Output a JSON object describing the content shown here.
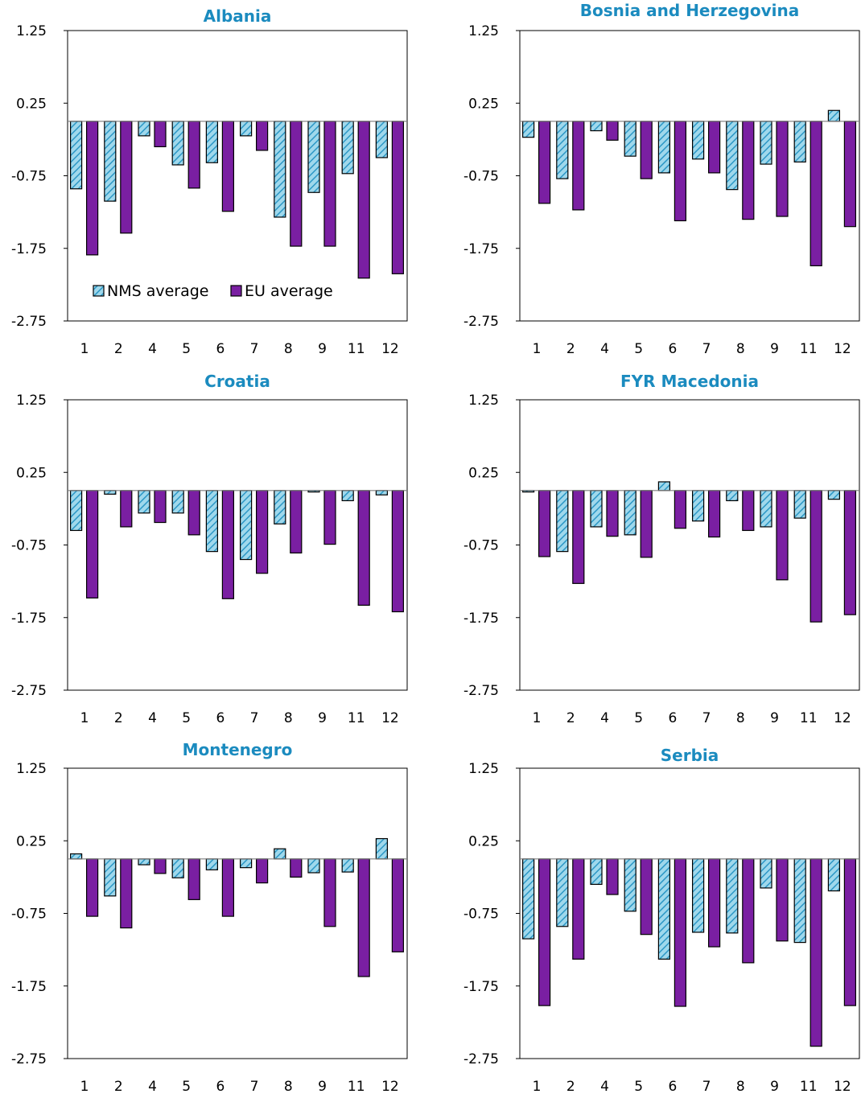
{
  "colors": {
    "nms_fill": "#9fd8ec",
    "nms_stripe": "#2c97c5",
    "eu_fill": "#7a1fa2",
    "title": "#1b8bbf",
    "axis": "#000000"
  },
  "legend": {
    "nms_label": "NMS average",
    "eu_label": "EU average"
  },
  "chart_data": [
    {
      "type": "bar",
      "title": "Albania",
      "categories": [
        "1",
        "2",
        "4",
        "5",
        "6",
        "7",
        "8",
        "9",
        "11",
        "12"
      ],
      "ylim": [
        -2.75,
        1.25
      ],
      "yticks": [
        "1.25",
        "0.25",
        "-0.75",
        "-1.75",
        "-2.75"
      ],
      "legend": "bottom-left",
      "series": [
        {
          "name": "NMS average",
          "values": [
            -0.93,
            -1.1,
            -0.2,
            -0.6,
            -0.57,
            -0.2,
            -1.32,
            -0.98,
            -0.72,
            -0.5
          ]
        },
        {
          "name": "EU average",
          "values": [
            -1.84,
            -1.54,
            -0.35,
            -0.92,
            -1.24,
            -0.4,
            -1.72,
            -1.72,
            -2.16,
            -2.1
          ]
        }
      ]
    },
    {
      "type": "bar",
      "title": "Bosnia and Herzegovina",
      "categories": [
        "1",
        "2",
        "4",
        "5",
        "6",
        "7",
        "8",
        "9",
        "11",
        "12"
      ],
      "ylim": [
        -2.75,
        1.25
      ],
      "yticks": [
        "1.25",
        "0.25",
        "-0.75",
        "-1.75",
        "-2.75"
      ],
      "series": [
        {
          "name": "NMS average",
          "values": [
            -0.22,
            -0.79,
            -0.13,
            -0.48,
            -0.71,
            -0.52,
            -0.94,
            -0.59,
            -0.56,
            0.15
          ]
        },
        {
          "name": "EU average",
          "values": [
            -1.13,
            -1.22,
            -0.26,
            -0.79,
            -1.37,
            -0.71,
            -1.35,
            -1.31,
            -1.99,
            -1.45
          ]
        }
      ]
    },
    {
      "type": "bar",
      "title": "Croatia",
      "categories": [
        "1",
        "2",
        "4",
        "5",
        "6",
        "7",
        "8",
        "9",
        "11",
        "12"
      ],
      "ylim": [
        -2.75,
        1.25
      ],
      "yticks": [
        "1.25",
        "0.25",
        "-0.75",
        "-1.75",
        "-2.75"
      ],
      "series": [
        {
          "name": "NMS average",
          "values": [
            -0.55,
            -0.05,
            -0.31,
            -0.31,
            -0.84,
            -0.95,
            -0.46,
            -0.02,
            -0.14,
            -0.06
          ]
        },
        {
          "name": "EU average",
          "values": [
            -1.48,
            -0.5,
            -0.44,
            -0.61,
            -1.49,
            -1.14,
            -0.86,
            -0.74,
            -1.58,
            -1.67
          ]
        }
      ]
    },
    {
      "type": "bar",
      "title": "FYR Macedonia",
      "categories": [
        "1",
        "2",
        "4",
        "5",
        "6",
        "7",
        "8",
        "9",
        "11",
        "12"
      ],
      "ylim": [
        -2.75,
        1.25
      ],
      "yticks": [
        "1.25",
        "0.25",
        "-0.75",
        "-1.75",
        "-2.75"
      ],
      "series": [
        {
          "name": "NMS average",
          "values": [
            -0.02,
            -0.84,
            -0.5,
            -0.61,
            0.12,
            -0.42,
            -0.14,
            -0.5,
            -0.38,
            -0.12
          ]
        },
        {
          "name": "EU average",
          "values": [
            -0.91,
            -1.28,
            -0.63,
            -0.92,
            -0.52,
            -0.64,
            -0.55,
            -1.23,
            -1.81,
            -1.71
          ]
        }
      ]
    },
    {
      "type": "bar",
      "title": "Montenegro",
      "categories": [
        "1",
        "2",
        "4",
        "5",
        "6",
        "7",
        "8",
        "9",
        "11",
        "12"
      ],
      "ylim": [
        -2.75,
        1.25
      ],
      "yticks": [
        "1.25",
        "0.25",
        "-0.75",
        "-1.75",
        "-2.75"
      ],
      "series": [
        {
          "name": "NMS average",
          "values": [
            0.07,
            -0.51,
            -0.08,
            -0.26,
            -0.15,
            -0.12,
            0.14,
            -0.19,
            -0.18,
            0.28
          ]
        },
        {
          "name": "EU average",
          "values": [
            -0.79,
            -0.95,
            -0.2,
            -0.56,
            -0.79,
            -0.33,
            -0.25,
            -0.93,
            -1.62,
            -1.28
          ]
        }
      ]
    },
    {
      "type": "bar",
      "title": "Serbia",
      "categories": [
        "1",
        "2",
        "4",
        "5",
        "6",
        "7",
        "8",
        "9",
        "11",
        "12"
      ],
      "ylim": [
        -2.75,
        1.25
      ],
      "yticks": [
        "1.25",
        "0.25",
        "-0.75",
        "-1.75",
        "-2.75"
      ],
      "series": [
        {
          "name": "NMS average",
          "values": [
            -1.1,
            -0.93,
            -0.35,
            -0.72,
            -1.38,
            -1.01,
            -1.02,
            -0.4,
            -1.15,
            -0.44
          ]
        },
        {
          "name": "EU average",
          "values": [
            -2.02,
            -1.38,
            -0.49,
            -1.04,
            -2.03,
            -1.21,
            -1.43,
            -1.13,
            -2.58,
            -2.02
          ]
        }
      ]
    }
  ]
}
